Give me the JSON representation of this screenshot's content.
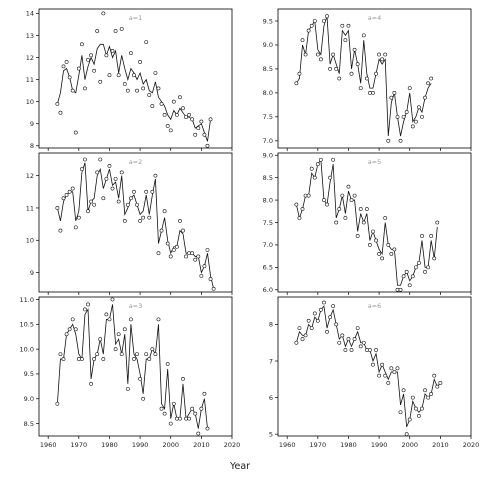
{
  "figure": {
    "xlabel": "Year"
  },
  "chart_data": [
    {
      "type": "line",
      "title": "a=1",
      "xlim": [
        1957,
        2020
      ],
      "ylim": [
        7.9,
        14.2
      ],
      "yticks": [
        8,
        9,
        10,
        11,
        12,
        13,
        14
      ],
      "x": [
        1963,
        1964,
        1965,
        1966,
        1967,
        1968,
        1969,
        1970,
        1971,
        1972,
        1973,
        1974,
        1975,
        1976,
        1977,
        1978,
        1979,
        1980,
        1981,
        1982,
        1983,
        1984,
        1985,
        1986,
        1987,
        1988,
        1989,
        1990,
        1991,
        1992,
        1993,
        1994,
        1995,
        1996,
        1997,
        1998,
        1999,
        2000,
        2001,
        2002,
        2003,
        2004,
        2005,
        2006,
        2007,
        2008,
        2009,
        2010,
        2011,
        2012,
        2013,
        2014,
        2015,
        2016
      ],
      "points": [
        9.9,
        9.5,
        11.6,
        11.8,
        11.1,
        10.5,
        8.6,
        11.5,
        12.6,
        10.6,
        11.9,
        12.1,
        11.4,
        13.2,
        10.9,
        14.0,
        12.1,
        11.2,
        12.3,
        13.2,
        11.2,
        13.3,
        10.8,
        10.5,
        12.2,
        11.2,
        10.5,
        11.8,
        10.6,
        12.7,
        10.3,
        9.8,
        11.3,
        10.6,
        9.9,
        9.4,
        8.9,
        8.7,
        10.0,
        9.4,
        10.2,
        9.7,
        9.3,
        9.4,
        9.2,
        8.5,
        8.8,
        9.1,
        8.5,
        8.0,
        9.2
      ],
      "line": [
        9.9,
        10.4,
        11.4,
        11.5,
        11.1,
        10.5,
        10.4,
        11.2,
        12.1,
        11.0,
        11.6,
        12.0,
        11.7,
        12.4,
        12.6,
        12.6,
        12.1,
        12.5,
        12.0,
        12.3,
        11.3,
        12.1,
        11.5,
        11.0,
        11.5,
        11.3,
        11.0,
        11.3,
        10.8,
        11.0,
        10.5,
        10.4,
        10.9,
        10.2,
        10.0,
        9.8,
        9.4,
        9.2,
        9.6,
        9.4,
        9.7,
        9.5,
        9.3,
        9.3,
        9.2,
        8.8,
        8.9,
        9.0,
        8.6,
        8.2,
        9.2
      ]
    },
    {
      "type": "line",
      "title": "a=4",
      "xlim": [
        1957,
        2020
      ],
      "ylim": [
        6.85,
        9.75
      ],
      "yticks": [
        7.0,
        7.5,
        8.0,
        8.5,
        9.0,
        9.5
      ],
      "x": [
        1963,
        1964,
        1965,
        1966,
        1967,
        1968,
        1969,
        1970,
        1971,
        1972,
        1973,
        1974,
        1975,
        1976,
        1977,
        1978,
        1979,
        1980,
        1981,
        1982,
        1983,
        1984,
        1985,
        1986,
        1987,
        1988,
        1989,
        1990,
        1991,
        1992,
        1993,
        1994,
        1995,
        1996,
        1997,
        1998,
        1999,
        2000,
        2001,
        2002,
        2003,
        2004,
        2005,
        2006,
        2007,
        2008,
        2009,
        2010,
        2011,
        2012,
        2013,
        2014,
        2015,
        2016
      ],
      "points": [
        8.2,
        8.4,
        9.1,
        8.8,
        9.3,
        9.4,
        9.5,
        8.8,
        8.7,
        9.5,
        9.6,
        8.5,
        8.8,
        8.5,
        8.3,
        9.4,
        9.1,
        9.4,
        8.4,
        8.9,
        8.6,
        8.1,
        9.2,
        8.3,
        8.0,
        8.0,
        8.4,
        8.8,
        8.7,
        8.8,
        7.0,
        7.9,
        8.0,
        7.5,
        7.0,
        7.5,
        7.6,
        8.1,
        7.3,
        7.4,
        7.7,
        7.5,
        7.9,
        8.2,
        8.3
      ],
      "line": [
        8.2,
        8.3,
        9.0,
        8.8,
        9.3,
        9.4,
        9.5,
        8.9,
        8.8,
        9.4,
        9.6,
        8.6,
        8.8,
        8.6,
        8.4,
        9.3,
        9.2,
        9.3,
        8.5,
        8.9,
        8.6,
        8.2,
        9.1,
        8.4,
        8.1,
        8.1,
        8.4,
        8.7,
        8.6,
        8.7,
        7.1,
        7.8,
        8.0,
        7.5,
        7.1,
        7.4,
        7.6,
        8.0,
        7.4,
        7.5,
        7.7,
        7.6,
        7.9,
        8.1,
        8.2
      ]
    },
    {
      "type": "line",
      "title": "a=2",
      "xlim": [
        1957,
        2020
      ],
      "ylim": [
        8.4,
        12.7
      ],
      "yticks": [
        9,
        10,
        11,
        12
      ],
      "x": [
        1963,
        1964,
        1965,
        1966,
        1967,
        1968,
        1969,
        1970,
        1971,
        1972,
        1973,
        1974,
        1975,
        1976,
        1977,
        1978,
        1979,
        1980,
        1981,
        1982,
        1983,
        1984,
        1985,
        1986,
        1987,
        1988,
        1989,
        1990,
        1991,
        1992,
        1993,
        1994,
        1995,
        1996,
        1997,
        1998,
        1999,
        2000,
        2001,
        2002,
        2003,
        2004,
        2005,
        2006,
        2007,
        2008,
        2009,
        2010,
        2011,
        2012,
        2013,
        2014,
        2015,
        2016
      ],
      "points": [
        11.0,
        10.3,
        11.3,
        11.4,
        11.5,
        11.6,
        10.4,
        10.7,
        12.2,
        12.5,
        10.9,
        11.2,
        11.1,
        12.1,
        12.5,
        11.3,
        11.9,
        12.3,
        11.6,
        11.9,
        11.2,
        12.1,
        10.6,
        11.1,
        11.3,
        11.5,
        11.1,
        10.6,
        10.7,
        11.5,
        10.7,
        11.5,
        12.0,
        9.6,
        10.3,
        10.9,
        9.9,
        9.5,
        9.7,
        9.8,
        10.6,
        10.3,
        9.5,
        9.6,
        9.6,
        9.4,
        9.5,
        8.9,
        9.2,
        9.7,
        8.8,
        8.5
      ],
      "line": [
        11.0,
        10.6,
        11.2,
        11.4,
        11.5,
        11.5,
        10.6,
        10.9,
        12.1,
        12.4,
        10.9,
        11.2,
        11.3,
        12.0,
        12.2,
        11.6,
        11.9,
        12.2,
        11.7,
        11.8,
        11.3,
        12.0,
        10.8,
        11.0,
        11.3,
        11.4,
        11.1,
        10.8,
        10.9,
        11.4,
        10.8,
        11.4,
        11.9,
        9.9,
        10.3,
        10.7,
        10.0,
        9.6,
        9.8,
        9.8,
        10.3,
        10.2,
        9.6,
        9.6,
        9.6,
        9.5,
        9.5,
        9.0,
        9.2,
        9.6,
        8.9,
        8.5
      ]
    },
    {
      "type": "line",
      "title": "a=5",
      "xlim": [
        1957,
        2020
      ],
      "ylim": [
        5.95,
        9.05
      ],
      "yticks": [
        6.0,
        6.5,
        7.0,
        7.5,
        8.0,
        8.5,
        9.0
      ],
      "x": [
        1963,
        1964,
        1965,
        1966,
        1967,
        1968,
        1969,
        1970,
        1971,
        1972,
        1973,
        1974,
        1975,
        1976,
        1977,
        1978,
        1979,
        1980,
        1981,
        1982,
        1983,
        1984,
        1985,
        1986,
        1987,
        1988,
        1989,
        1990,
        1991,
        1992,
        1993,
        1994,
        1995,
        1996,
        1997,
        1998,
        1999,
        2000,
        2001,
        2002,
        2003,
        2004,
        2005,
        2006,
        2007,
        2008,
        2009,
        2010,
        2011,
        2012,
        2013,
        2014,
        2015,
        2016
      ],
      "points": [
        7.9,
        7.6,
        7.8,
        8.1,
        8.1,
        8.7,
        8.5,
        8.8,
        8.9,
        8.0,
        7.9,
        8.5,
        8.9,
        7.5,
        7.8,
        8.1,
        7.6,
        8.3,
        8.0,
        8.1,
        7.2,
        7.8,
        7.5,
        7.8,
        7.0,
        7.3,
        7.1,
        6.8,
        6.7,
        7.6,
        7.0,
        6.8,
        6.9,
        6.0,
        6.0,
        6.3,
        6.4,
        6.1,
        6.3,
        6.5,
        6.6,
        7.2,
        6.4,
        6.5,
        7.2,
        6.7,
        7.5
      ],
      "line": [
        7.9,
        7.6,
        7.8,
        8.1,
        8.1,
        8.6,
        8.5,
        8.8,
        8.9,
        8.0,
        7.9,
        8.4,
        8.8,
        7.6,
        7.8,
        8.1,
        7.7,
        8.2,
        8.0,
        8.0,
        7.3,
        7.7,
        7.5,
        7.7,
        7.1,
        7.3,
        7.1,
        6.9,
        6.8,
        7.5,
        7.0,
        6.9,
        6.9,
        6.1,
        6.1,
        6.3,
        6.4,
        6.2,
        6.3,
        6.5,
        6.6,
        7.1,
        6.5,
        6.5,
        7.1,
        6.7,
        7.4
      ]
    },
    {
      "type": "line",
      "title": "a=3",
      "xlim": [
        1957,
        2020
      ],
      "ylim": [
        8.25,
        11.05
      ],
      "yticks": [
        8.5,
        9.0,
        9.5,
        10.0,
        10.5,
        11.0
      ],
      "x": [
        1963,
        1964,
        1965,
        1966,
        1967,
        1968,
        1969,
        1970,
        1971,
        1972,
        1973,
        1974,
        1975,
        1976,
        1977,
        1978,
        1979,
        1980,
        1981,
        1982,
        1983,
        1984,
        1985,
        1986,
        1987,
        1988,
        1989,
        1990,
        1991,
        1992,
        1993,
        1994,
        1995,
        1996,
        1997,
        1998,
        1999,
        2000,
        2001,
        2002,
        2003,
        2004,
        2005,
        2006,
        2007,
        2008,
        2009,
        2010,
        2011,
        2012,
        2013,
        2014,
        2015,
        2016
      ],
      "points": [
        8.9,
        9.9,
        9.8,
        10.3,
        10.4,
        10.6,
        10.4,
        9.8,
        9.8,
        10.8,
        10.9,
        9.3,
        9.8,
        9.9,
        10.2,
        9.8,
        10.7,
        10.6,
        11.0,
        10.0,
        10.3,
        9.9,
        10.4,
        9.2,
        10.6,
        9.8,
        9.9,
        9.4,
        9.0,
        9.9,
        9.8,
        10.0,
        9.9,
        10.6,
        8.8,
        8.7,
        9.7,
        8.5,
        8.9,
        8.6,
        8.6,
        9.4,
        8.6,
        8.6,
        8.8,
        8.7,
        8.3,
        8.8,
        9.1,
        8.4
      ],
      "line": [
        8.9,
        9.8,
        9.8,
        10.3,
        10.4,
        10.5,
        10.3,
        9.9,
        9.8,
        10.7,
        10.8,
        9.4,
        9.8,
        9.9,
        10.2,
        9.9,
        10.6,
        10.6,
        10.9,
        10.1,
        10.2,
        9.9,
        10.3,
        9.3,
        10.5,
        9.9,
        9.8,
        9.5,
        9.1,
        9.8,
        9.8,
        10.0,
        9.9,
        10.5,
        8.9,
        8.8,
        9.6,
        8.6,
        8.9,
        8.6,
        8.6,
        9.3,
        8.6,
        8.7,
        8.8,
        8.7,
        8.4,
        8.8,
        9.0,
        8.4
      ]
    },
    {
      "type": "line",
      "title": "a=6",
      "xlim": [
        1957,
        2020
      ],
      "ylim": [
        4.95,
        8.75
      ],
      "yticks": [
        5,
        6,
        7,
        8
      ],
      "x": [
        1963,
        1964,
        1965,
        1966,
        1967,
        1968,
        1969,
        1970,
        1971,
        1972,
        1973,
        1974,
        1975,
        1976,
        1977,
        1978,
        1979,
        1980,
        1981,
        1982,
        1983,
        1984,
        1985,
        1986,
        1987,
        1988,
        1989,
        1990,
        1991,
        1992,
        1993,
        1994,
        1995,
        1996,
        1997,
        1998,
        1999,
        2000,
        2001,
        2002,
        2003,
        2004,
        2005,
        2006,
        2007,
        2008,
        2009,
        2010,
        2011,
        2012,
        2013,
        2014,
        2015,
        2016
      ],
      "points": [
        7.5,
        7.9,
        7.6,
        7.7,
        8.1,
        7.9,
        8.3,
        8.1,
        8.4,
        8.6,
        7.8,
        8.2,
        8.5,
        8.0,
        7.5,
        7.7,
        7.3,
        7.6,
        7.3,
        7.6,
        7.9,
        7.4,
        7.5,
        7.3,
        7.3,
        6.9,
        7.3,
        6.6,
        6.9,
        6.6,
        6.4,
        6.8,
        6.7,
        6.8,
        5.6,
        6.2,
        5.0,
        5.4,
        6.0,
        5.7,
        5.5,
        5.7,
        6.2,
        6.0,
        6.1,
        6.6,
        6.3,
        6.4
      ],
      "line": [
        7.5,
        7.8,
        7.7,
        7.7,
        8.0,
        7.9,
        8.2,
        8.1,
        8.4,
        8.5,
        7.9,
        8.2,
        8.4,
        8.0,
        7.6,
        7.7,
        7.4,
        7.6,
        7.4,
        7.6,
        7.8,
        7.5,
        7.5,
        7.3,
        7.3,
        7.0,
        7.2,
        6.7,
        6.9,
        6.7,
        6.5,
        6.7,
        6.7,
        6.7,
        5.8,
        6.1,
        5.2,
        5.4,
        5.9,
        5.7,
        5.6,
        5.7,
        6.1,
        6.0,
        6.1,
        6.5,
        6.3,
        6.4
      ]
    }
  ]
}
